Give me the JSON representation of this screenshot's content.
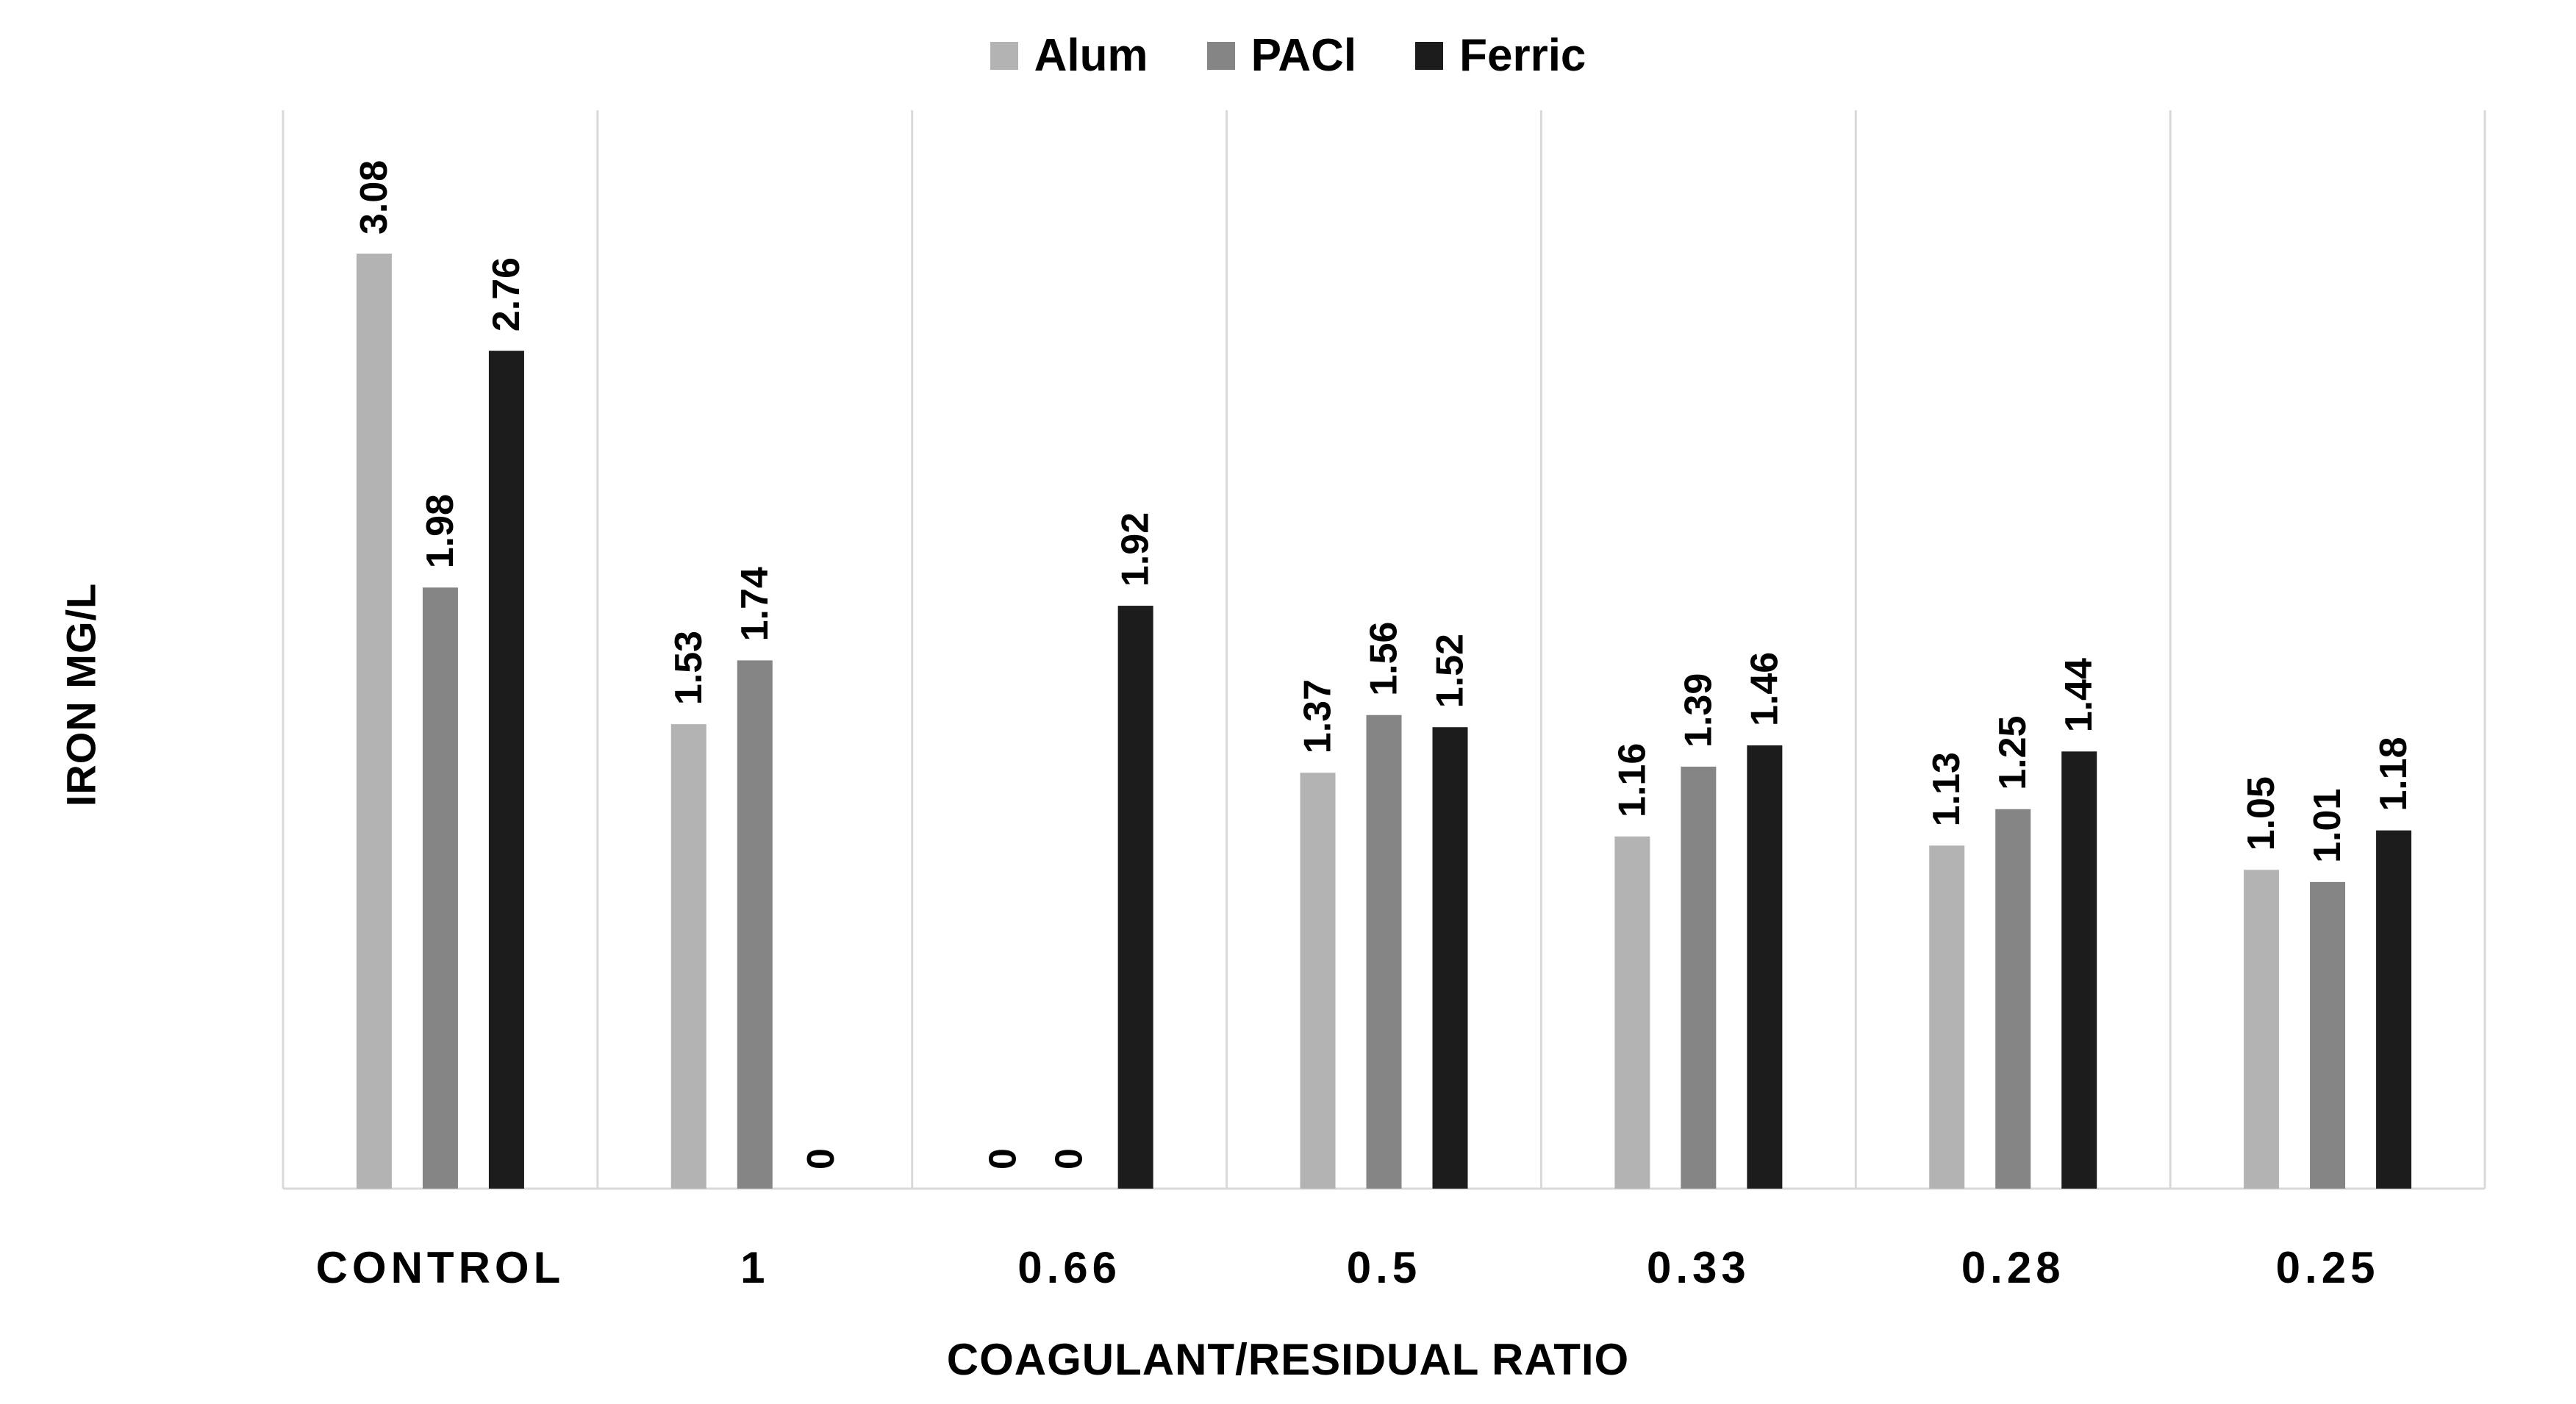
{
  "chart_data": {
    "type": "bar",
    "title": "",
    "xlabel": "COAGULANT/RESIDUAL RATIO",
    "ylabel": "IRON MG/L",
    "categories": [
      "CONTROL",
      "1",
      "0.66",
      "0.5",
      "0.33",
      "0.28",
      "0.25"
    ],
    "series": [
      {
        "name": "Alum",
        "color": "#b3b3b3",
        "values": [
          3.08,
          1.53,
          0,
          1.37,
          1.16,
          1.13,
          1.05
        ],
        "labels": [
          "3.08",
          "1.53",
          "0",
          "1.37",
          "1.16",
          "1.13",
          "1.05"
        ]
      },
      {
        "name": "PACl",
        "color": "#858585",
        "values": [
          1.98,
          1.74,
          0,
          1.56,
          1.39,
          1.25,
          1.01
        ],
        "labels": [
          "1.98",
          "1.74",
          "0",
          "1.56",
          "1.39",
          "1.25",
          "1.01"
        ]
      },
      {
        "name": "Ferric",
        "color": "#1c1c1c",
        "values": [
          2.76,
          0,
          1.92,
          1.52,
          1.46,
          1.44,
          1.18
        ],
        "labels": [
          "2.76",
          "0",
          "1.92",
          "1.52",
          "1.46",
          "1.44",
          "1.18"
        ]
      }
    ],
    "ylim": [
      0,
      3.08
    ],
    "grid": "vertical category separators",
    "legend": "top-center"
  }
}
